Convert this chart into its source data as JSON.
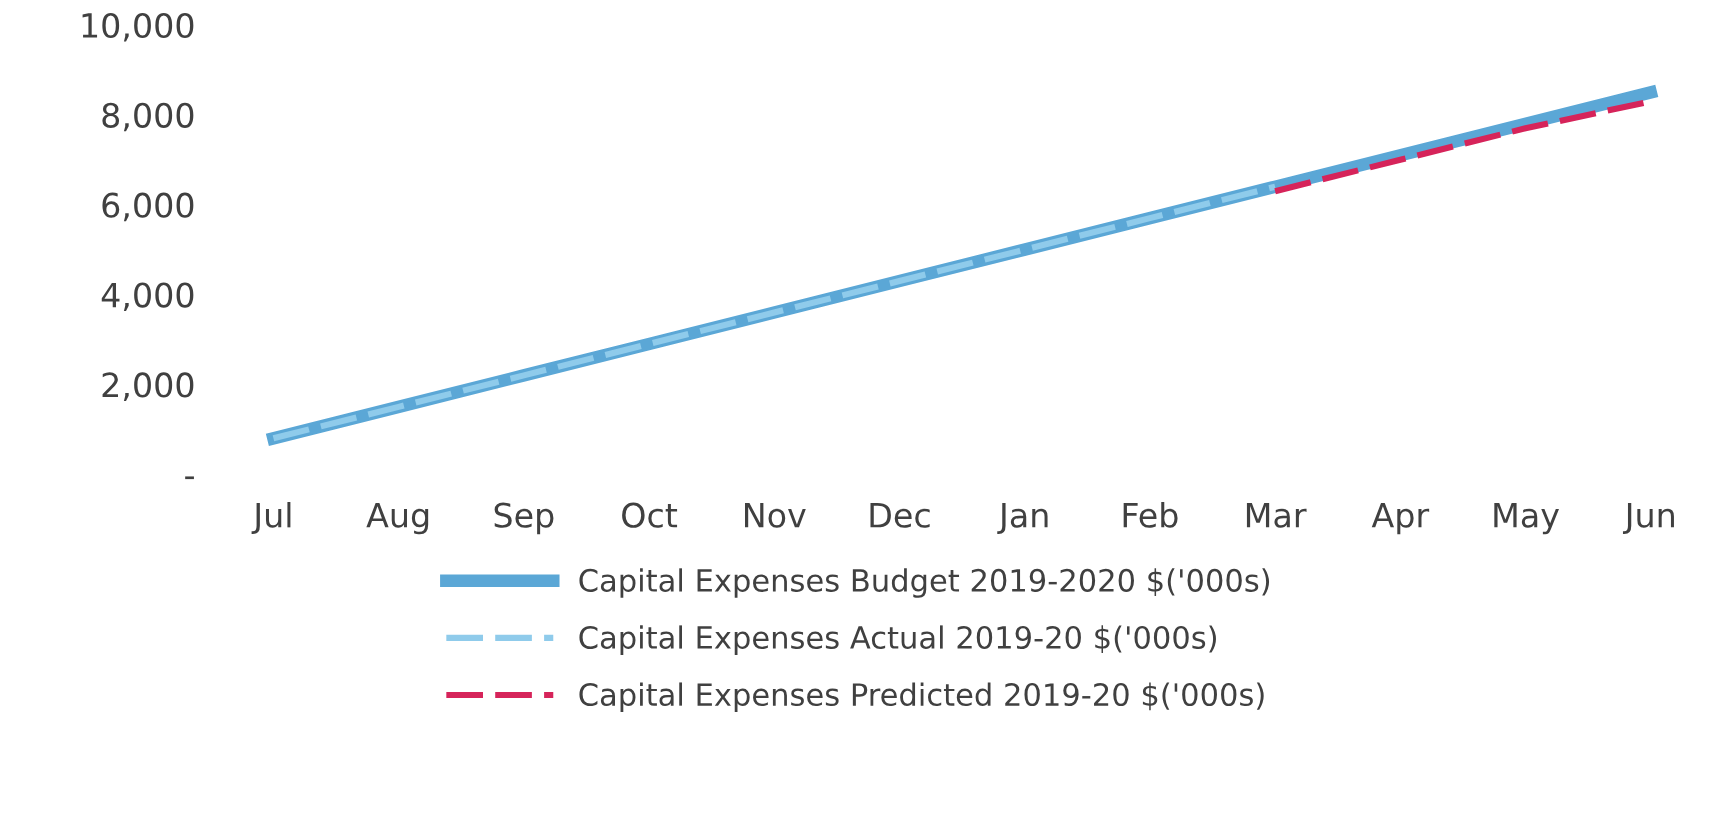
{
  "chart_data": {
    "type": "line",
    "categories": [
      "Jul",
      "Aug",
      "Sep",
      "Oct",
      "Nov",
      "Dec",
      "Jan",
      "Feb",
      "Mar",
      "Apr",
      "May",
      "Jun"
    ],
    "series": [
      {
        "name": "Capital Expenses Budget 2019-2020 $('000s)",
        "color": "#5ba7d6",
        "line_style": "solid",
        "values": [
          800,
          1500,
          2200,
          2900,
          3600,
          4300,
          5000,
          5700,
          6400,
          7100,
          7800,
          8500
        ]
      },
      {
        "name": "Capital Expenses Actual 2019-20 $('000s)",
        "color": "#8fcbeb",
        "line_style": "dashed",
        "values": [
          800,
          1500,
          2200,
          2900,
          3600,
          4300,
          5000,
          5700,
          6400,
          null,
          null,
          null
        ]
      },
      {
        "name": "Capital Expenses Predicted 2019-20 $('000s)",
        "color": "#d6245a",
        "line_style": "dashed",
        "values": [
          null,
          null,
          null,
          null,
          null,
          null,
          null,
          null,
          6300,
          7000,
          7700,
          8300
        ]
      }
    ],
    "ylim": [
      0,
      10000
    ],
    "yticks": [
      {
        "value": 0,
        "label": "-"
      },
      {
        "value": 2000,
        "label": "2,000"
      },
      {
        "value": 4000,
        "label": "4,000"
      },
      {
        "value": 6000,
        "label": "6,000"
      },
      {
        "value": 8000,
        "label": "8,000"
      },
      {
        "value": 10000,
        "label": "10,000"
      }
    ],
    "grid": false,
    "legend": "bottom",
    "marker": "none"
  }
}
